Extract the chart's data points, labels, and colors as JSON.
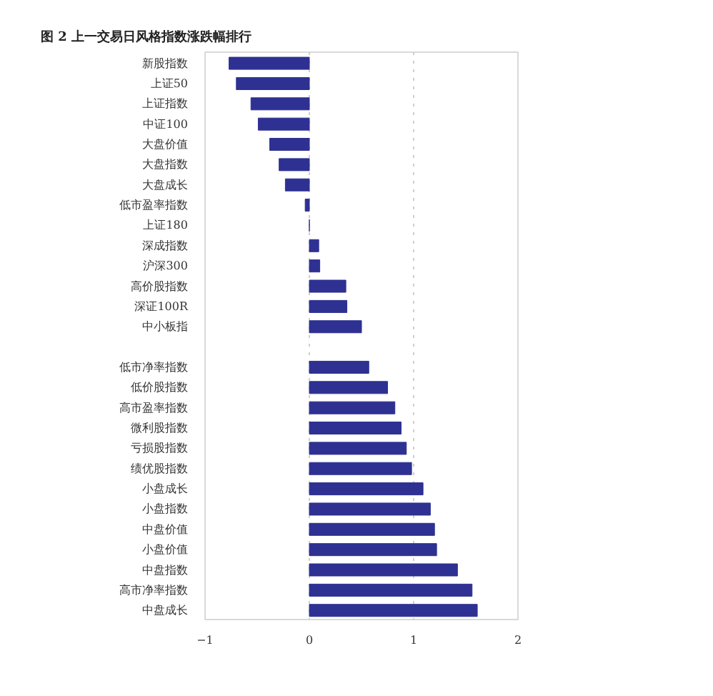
{
  "chart_data": {
    "type": "bar",
    "orientation": "horizontal",
    "title": "图 2 上一交易日风格指数涨跌幅排行",
    "categories": [
      "新股指数",
      "上证50",
      "上证指数",
      "中证100",
      "大盘价值",
      "大盘指数",
      "大盘成长",
      "低市盈率指数",
      "上证180",
      "深成指数",
      "沪深300",
      "高价股指数",
      "深证100R",
      "中小板指",
      null,
      "低市净率指数",
      "低价股指数",
      "高市盈率指数",
      "微利股指数",
      "亏损股指数",
      "绩优股指数",
      "小盘成长",
      "小盘指数",
      "中盘价值",
      "小盘价值",
      "中盘指数",
      "高市净率指数",
      "中盘成长"
    ],
    "values": [
      -0.77,
      -0.7,
      -0.56,
      -0.49,
      -0.38,
      -0.29,
      -0.23,
      -0.04,
      0,
      0.09,
      0.1,
      0.35,
      0.36,
      0.5,
      null,
      0.57,
      0.75,
      0.82,
      0.88,
      0.93,
      0.98,
      1.09,
      1.16,
      1.2,
      1.22,
      1.42,
      1.56,
      1.61
    ],
    "color": "#2e3192",
    "xlim": [
      -1,
      2
    ],
    "xticks": [
      -1,
      0,
      1,
      2
    ],
    "grid": "x"
  }
}
